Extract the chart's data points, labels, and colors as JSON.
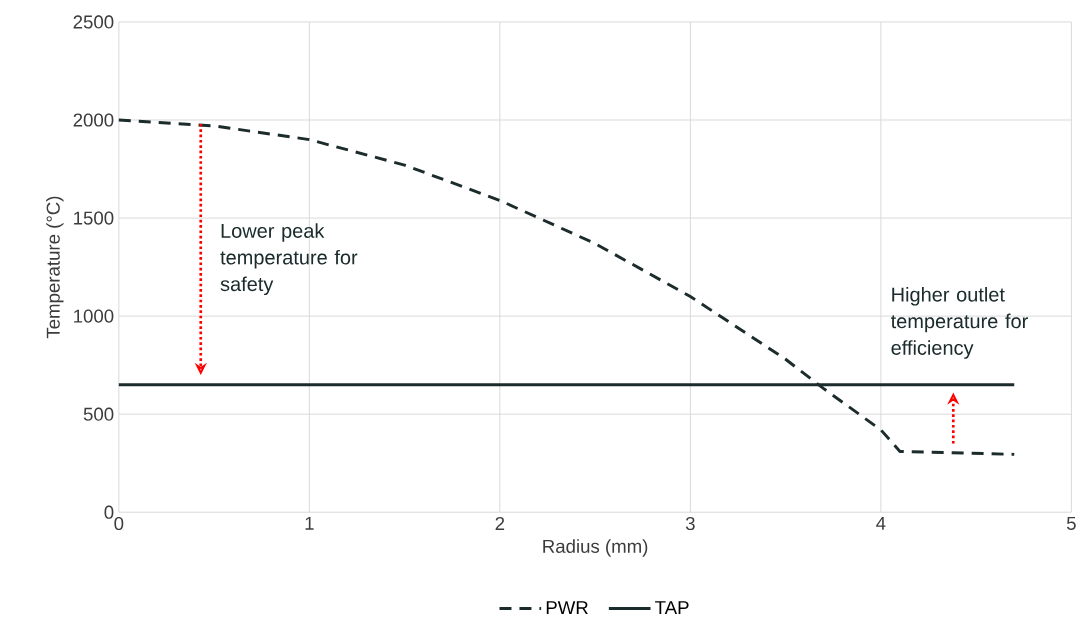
{
  "chart_data": {
    "type": "line",
    "xlabel": "Radius (mm)",
    "ylabel": "Temperature (°C)",
    "xlim": [
      0,
      5
    ],
    "xticks": [
      0,
      1,
      2,
      3,
      4,
      5
    ],
    "ylim": [
      0,
      2500
    ],
    "yticks": [
      0,
      500,
      1000,
      1500,
      2000,
      2500
    ],
    "grid": true,
    "legend": "bottom",
    "marker": "none",
    "series": [
      {
        "name": "PWR",
        "color": "#1c2b2b",
        "line_style": "dashed",
        "x": [
          0,
          0.5,
          1,
          1.5,
          2,
          2.5,
          3,
          3.5,
          3.7,
          4,
          4.1,
          4.7
        ],
        "values": [
          2000,
          1970,
          1900,
          1770,
          1590,
          1370,
          1100,
          780,
          630,
          420,
          310,
          295
        ]
      },
      {
        "name": "TAP",
        "color": "#1c2b2b",
        "line_style": "solid",
        "x": [
          0,
          4.7
        ],
        "values": [
          650,
          650
        ]
      }
    ],
    "annotations": [
      "Lower peak temperature for safety",
      "Higher outlet temperature for efficiency"
    ]
  }
}
